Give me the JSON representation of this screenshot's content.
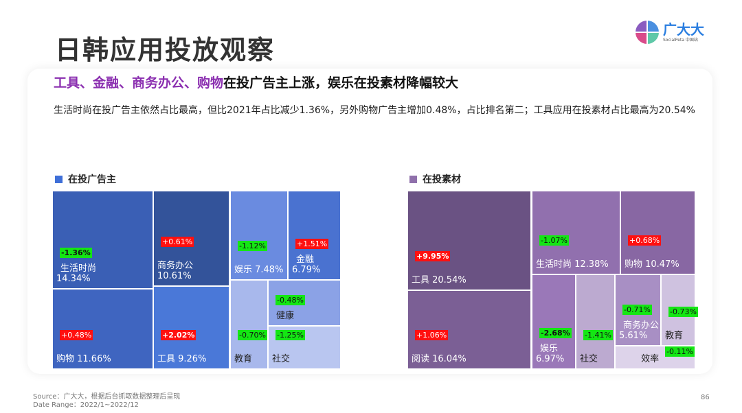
{
  "title": "日韩应用投放观察",
  "logo": {
    "name": "广大大",
    "sub": "SocialPeta 中国站"
  },
  "headline": {
    "highlight": "工具、金融、商务办公、购物",
    "rest": "在投广告主上涨，娱乐在投素材降幅较大"
  },
  "description": "生活时尚在投广告主依然占比最高，但比2021年占比减少1.36%，另外购物广告主增加0.48%，占比排名第二；工具应用在投素材占比最高为20.54%",
  "colors": {
    "advertisers": "#3f65c0",
    "creatives": "#8f70ab",
    "up": "#ff1010",
    "down": "#14e614"
  },
  "advertisers": {
    "legend": "在投广告主",
    "cells": [
      {
        "name": "生活时尚",
        "share": "14.34%",
        "change": "-1.36%"
      },
      {
        "name": "购物",
        "share": "11.66%",
        "change": "+0.48%"
      },
      {
        "name": "商务办公",
        "share": "10.61%",
        "change": "+0.61%"
      },
      {
        "name": "工具",
        "share": "9.26%",
        "change": "+2.02%"
      },
      {
        "name": "娱乐",
        "share": "7.48%",
        "change": "-1.12%"
      },
      {
        "name": "金融",
        "share": "6.79%",
        "change": "+1.51%"
      },
      {
        "name": "教育",
        "share": "",
        "change": "-0.70%"
      },
      {
        "name": "健康",
        "share": "",
        "change": "-0.48%"
      },
      {
        "name": "社交",
        "share": "",
        "change": "-1.25%"
      }
    ]
  },
  "creatives": {
    "legend": "在投素材",
    "cells": [
      {
        "name": "工具",
        "share": "20.54%",
        "change": "+9.95%"
      },
      {
        "name": "阅读",
        "share": "16.04%",
        "change": "+1.06%"
      },
      {
        "name": "生活时尚",
        "share": "12.38%",
        "change": "-1.07%"
      },
      {
        "name": "购物",
        "share": "10.47%",
        "change": "+0.68%"
      },
      {
        "name": "娱乐",
        "share": "6.97%",
        "change": "-2.68%"
      },
      {
        "name": "社交",
        "share": "",
        "change": "-1.41%"
      },
      {
        "name": "商务办公",
        "share": "5.61%",
        "change": "-0.71%"
      },
      {
        "name": "教育",
        "share": "",
        "change": "-0.73%"
      },
      {
        "name": "效率",
        "share": "",
        "change": "-0.11%"
      }
    ]
  },
  "footer": {
    "source": "Source：广大大，根据后台抓取数据整理后呈现",
    "range": "Date Range：2022/1~2022/12",
    "page": "86"
  }
}
